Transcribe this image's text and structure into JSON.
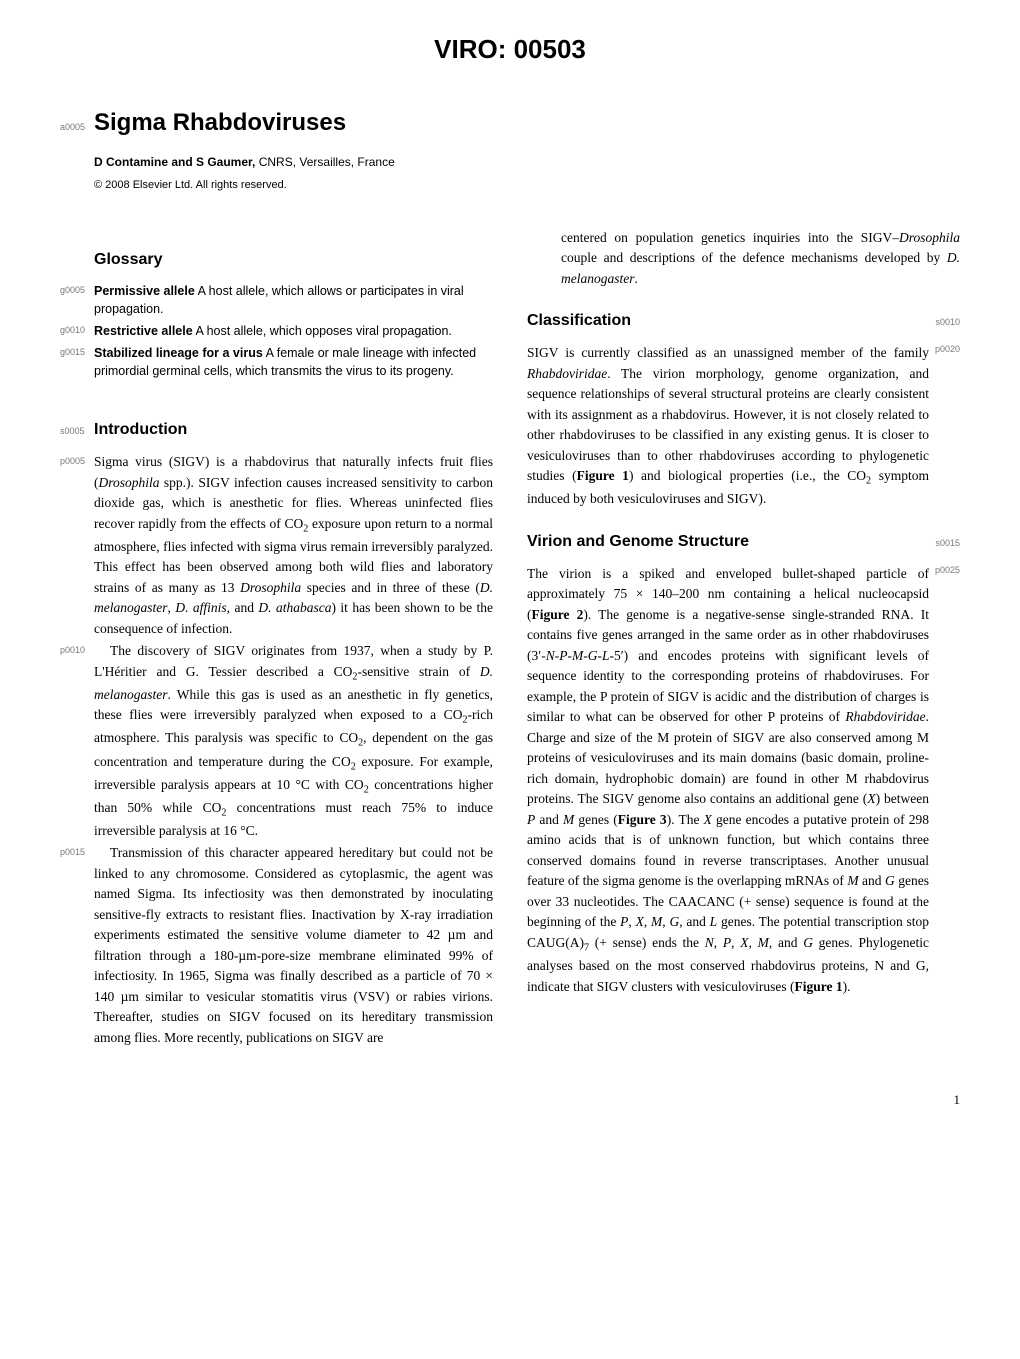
{
  "header": {
    "viro": "VIRO: 00503"
  },
  "title_block": {
    "marker": "a0005",
    "title": "Sigma Rhabdoviruses",
    "authors_bold": "D Contamine and S Gaumer,",
    "authors_rest": " CNRS, Versailles, France",
    "copyright": "© 2008 Elsevier Ltd. All rights reserved."
  },
  "glossary": {
    "heading": "Glossary",
    "items": [
      {
        "marker": "g0005",
        "term": "Permissive allele",
        "def": " A host allele, which allows or participates in viral propagation."
      },
      {
        "marker": "g0010",
        "term": "Restrictive allele",
        "def": " A host allele, which opposes viral propagation."
      },
      {
        "marker": "g0015",
        "term": "Stabilized lineage for a virus",
        "def": " A female or male lineage with infected primordial germinal cells, which transmits the virus to its progeny."
      }
    ]
  },
  "introduction": {
    "marker": "s0005",
    "heading": "Introduction",
    "paras": [
      {
        "marker": "p0005",
        "html": "Sigma virus (SIGV) is a rhabdovirus that naturally infects fruit flies (<i>Drosophila</i> spp.). SIGV infection causes increased sensitivity to carbon dioxide gas, which is anesthetic for flies. Whereas uninfected flies recover rapidly from the effects of CO<sub>2</sub> exposure upon return to a normal atmosphere, flies infected with sigma virus remain irreversibly paralyzed. This effect has been observed among both wild flies and laboratory strains of as many as 13 <i>Drosophila</i> species and in three of these (<i>D. melanogaster</i>, <i>D. affinis</i>, and <i>D. athabasca</i>) it has been shown to be the consequence of infection."
      },
      {
        "marker": "p0010",
        "indent": true,
        "html": "The discovery of SIGV originates from 1937, when a study by P. L'Héritier and G. Tessier described a CO<sub>2</sub>-sensitive strain of <i>D. melanogaster</i>. While this gas is used as an anesthetic in fly genetics, these flies were irreversibly paralyzed when exposed to a CO<sub>2</sub>-rich atmosphere. This paralysis was specific to CO<sub>2</sub>, dependent on the gas concentration and temperature during the CO<sub>2</sub> exposure. For example, irreversible paralysis appears at 10 °C with CO<sub>2</sub> concentrations higher than 50% while CO<sub>2</sub> concentrations must reach 75% to induce irreversible paralysis at 16 °C."
      },
      {
        "marker": "p0015",
        "indent": true,
        "html": "Transmission of this character appeared hereditary but could not be linked to any chromosome. Considered as cytoplasmic, the agent was named Sigma. Its infectiosity was then demonstrated by inoculating sensitive-fly extracts to resistant flies. Inactivation by X-ray irradiation experiments estimated the sensitive volume diameter to 42 µm and filtration through a 180-µm-pore-size membrane eliminated 99% of infectiosity. In 1965, Sigma was finally described as a particle of 70 × 140 µm similar to vesicular stomatitis virus (VSV) or rabies virions. Thereafter, studies on SIGV focused on its hereditary transmission among flies. More recently, publications on SIGV are"
      }
    ]
  },
  "col2_lead": {
    "html": "centered on population genetics inquiries into the SIGV–<i>Drosophila</i> couple and descriptions of the defence mechanisms developed by <i>D. melanogaster</i>."
  },
  "classification": {
    "heading": "Classification",
    "marker_right": "s0010",
    "para_marker_right": "p0020",
    "html": "SIGV is currently classified as an unassigned member of the family <i>Rhabdoviridae</i>. The virion morphology, genome organization, and sequence relationships of several structural proteins are clearly consistent with its assignment as a rhabdovirus. However, it is not closely related to other rhabdoviruses to be classified in any existing genus. It is closer to vesiculoviruses than to other rhabdoviruses according to phylogenetic studies (<b>Figure 1</b>) and biological properties (i.e., the CO<sub>2</sub> symptom induced by both vesiculoviruses and SIGV)."
  },
  "virion": {
    "heading": "Virion and Genome Structure",
    "marker_right": "s0015",
    "para_marker_right": "p0025",
    "html": "The virion is a spiked and enveloped bullet-shaped particle of approximately 75 × 140–200 nm containing a helical nucleocapsid (<b>Figure 2</b>). The genome is a negative-sense single-stranded RNA. It contains five genes arranged in the same order as in other rhabdoviruses (3′-<i>N</i>-<i>P</i>-<i>M</i>-<i>G</i>-<i>L</i>-5′) and encodes proteins with significant levels of sequence identity to the corresponding proteins of rhabdoviruses. For example, the P protein of SIGV is acidic and the distribution of charges is similar to what can be observed for other P proteins of <i>Rhabdoviridae</i>. Charge and size of the M protein of SIGV are also conserved among M proteins of vesiculoviruses and its main domains (basic domain, proline-rich domain, hydrophobic domain) are found in other M rhabdovirus proteins. The SIGV genome also contains an additional gene (<i>X</i>) between <i>P</i> and <i>M</i> genes (<b>Figure 3</b>). The <i>X</i> gene encodes a putative protein of 298 amino acids that is of unknown function, but which contains three conserved domains found in reverse transcriptases. Another unusual feature of the sigma genome is the overlapping mRNAs of <i>M</i> and <i>G</i> genes over 33 nucleotides. The CAACANC (+ sense) sequence is found at the beginning of the <i>P</i>, <i>X</i>, <i>M</i>, <i>G</i>, and <i>L</i> genes. The potential transcription stop CAUG(A)<sub>7</sub> (+ sense) ends the <i>N</i>, <i>P</i>, <i>X</i>, <i>M</i>, and <i>G</i> genes. Phylogenetic analyses based on the most conserved rhabdovirus proteins, N and G, indicate that SIGV clusters with vesiculoviruses (<b>Figure 1</b>)."
  },
  "page_number": "1"
}
